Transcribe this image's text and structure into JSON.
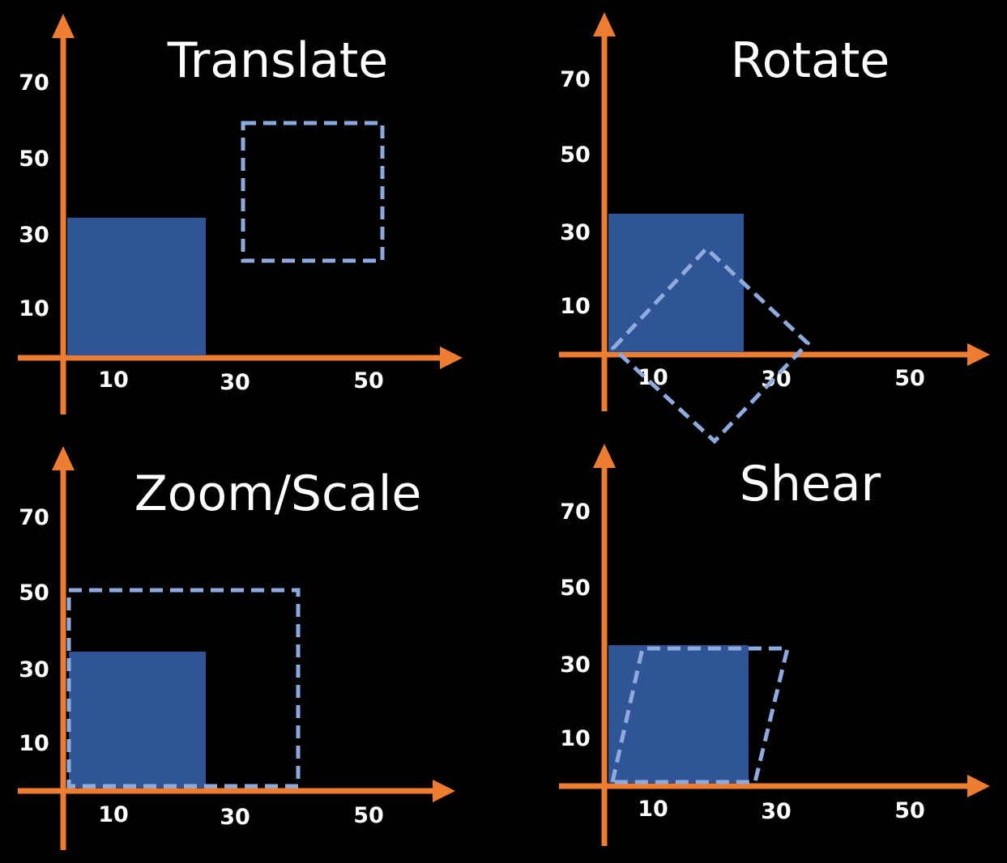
{
  "panels": [
    {
      "id": "translate",
      "title": "Translate",
      "y_ticks": [
        "70",
        "50",
        "30",
        "10"
      ],
      "x_ticks": [
        "10",
        "30",
        "50"
      ],
      "original_shape": "rectangle",
      "transformed_shape": "rectangle"
    },
    {
      "id": "rotate",
      "title": "Rotate",
      "y_ticks": [
        "70",
        "50",
        "30",
        "10"
      ],
      "x_ticks": [
        "10",
        "30",
        "50"
      ],
      "original_shape": "rectangle",
      "transformed_shape": "rotated-rectangle"
    },
    {
      "id": "zoom-scale",
      "title": "Zoom/Scale",
      "y_ticks": [
        "70",
        "50",
        "30",
        "10"
      ],
      "x_ticks": [
        "10",
        "30",
        "50"
      ],
      "original_shape": "rectangle",
      "transformed_shape": "rectangle"
    },
    {
      "id": "shear",
      "title": "Shear",
      "y_ticks": [
        "70",
        "50",
        "30",
        "10"
      ],
      "x_ticks": [
        "10",
        "30",
        "50"
      ],
      "original_shape": "rectangle",
      "transformed_shape": "parallelogram"
    }
  ],
  "colors": {
    "background": "#000000",
    "axis": "#ED7D31",
    "original_fill": "#2F5597",
    "transformed_outline": "#8FAADC",
    "text": "#FFFFFF"
  }
}
